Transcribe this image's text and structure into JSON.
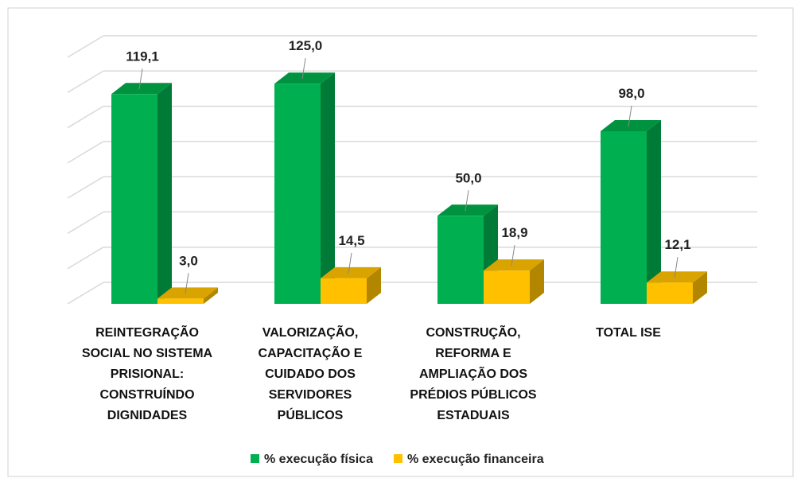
{
  "chart_data": {
    "type": "bar3d",
    "categories": [
      "REINTEGRAÇÃO SOCIAL NO SISTEMA PRISIONAL: CONSTRUÍNDO DIGNIDADES",
      "VALORIZAÇÃO, CAPACITAÇÃO E CUIDADO DOS SERVIDORES PÚBLICOS",
      "CONSTRUÇÃO, REFORMA E AMPLIAÇÃO DOS PRÉDIOS PÚBLICOS ESTADUAIS",
      "TOTAL ISE"
    ],
    "series": [
      {
        "name": "% execução física",
        "color": "#00b050",
        "values": [
          119.1,
          125.0,
          50.0,
          98.0
        ],
        "value_labels": [
          "119,1",
          "125,0",
          "50,0",
          "98,0"
        ]
      },
      {
        "name": "% execução financeira",
        "color": "#ffc000",
        "values": [
          3.0,
          14.5,
          18.9,
          12.1
        ],
        "value_labels": [
          "3,0",
          "14,5",
          "18,9",
          "12,1"
        ]
      }
    ],
    "ylim": [
      0,
      140
    ],
    "yticks": [
      0,
      20,
      40,
      60,
      80,
      100,
      120,
      140
    ],
    "grid": true,
    "legend": "bottom"
  }
}
